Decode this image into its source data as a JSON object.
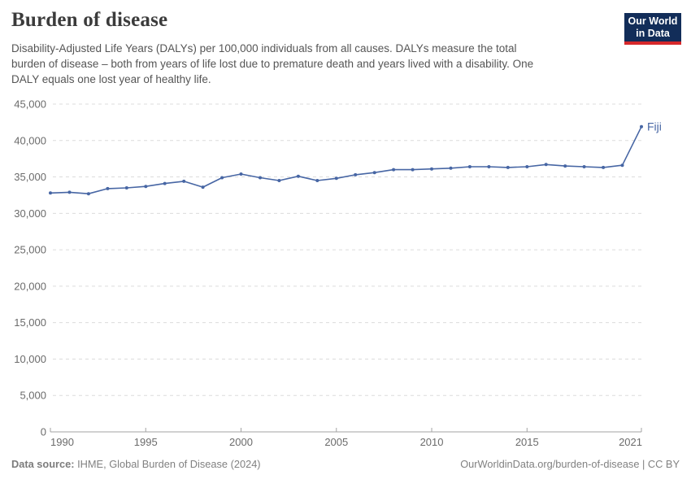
{
  "header": {
    "title": "Burden of disease",
    "subtitle_lines": [
      "Disability-Adjusted Life Years (DALYs) per 100,000 individuals from all causes. DALYs measure the total",
      "burden of disease – both from years of life lost due to premature death and years lived with a disability. One",
      "DALY equals one lost year of healthy life."
    ],
    "logo_line1": "Our World",
    "logo_line2": "in Data"
  },
  "chart_data": {
    "type": "line",
    "title": "Burden of disease",
    "ylabel": "",
    "xlabel": "",
    "entity_label": "Fiji",
    "x": [
      1990,
      1991,
      1992,
      1993,
      1994,
      1995,
      1996,
      1997,
      1998,
      1999,
      2000,
      2001,
      2002,
      2003,
      2004,
      2005,
      2006,
      2007,
      2008,
      2009,
      2010,
      2011,
      2012,
      2013,
      2014,
      2015,
      2016,
      2017,
      2018,
      2019,
      2020,
      2021
    ],
    "series": [
      {
        "name": "Fiji",
        "values": [
          32800,
          32900,
          32700,
          33400,
          33500,
          33700,
          34100,
          34400,
          33600,
          34900,
          35400,
          34900,
          34500,
          35100,
          34500,
          34800,
          35300,
          35600,
          36000,
          36000,
          36100,
          36200,
          36400,
          36400,
          36300,
          36400,
          36700,
          36500,
          36400,
          36300,
          36600,
          41900
        ]
      }
    ],
    "xlim": [
      1990,
      2021
    ],
    "ylim": [
      0,
      45000
    ],
    "yticks": [
      0,
      5000,
      10000,
      15000,
      20000,
      25000,
      30000,
      35000,
      40000,
      45000
    ],
    "xticks": [
      1990,
      1995,
      2000,
      2005,
      2010,
      2015,
      2021
    ],
    "grid": "horizontal-dashed",
    "legend_position": "end-of-line",
    "line_color": "#4766a4",
    "grid_color": "#dcdcdc",
    "axis_color": "#a3a3a3",
    "tick_label_color": "#6b6b6b"
  },
  "footer": {
    "source_label": "Data source:",
    "source_text": "IHME, Global Burden of Disease (2024)",
    "link_text": "OurWorldinData.org/burden-of-disease | CC BY"
  }
}
